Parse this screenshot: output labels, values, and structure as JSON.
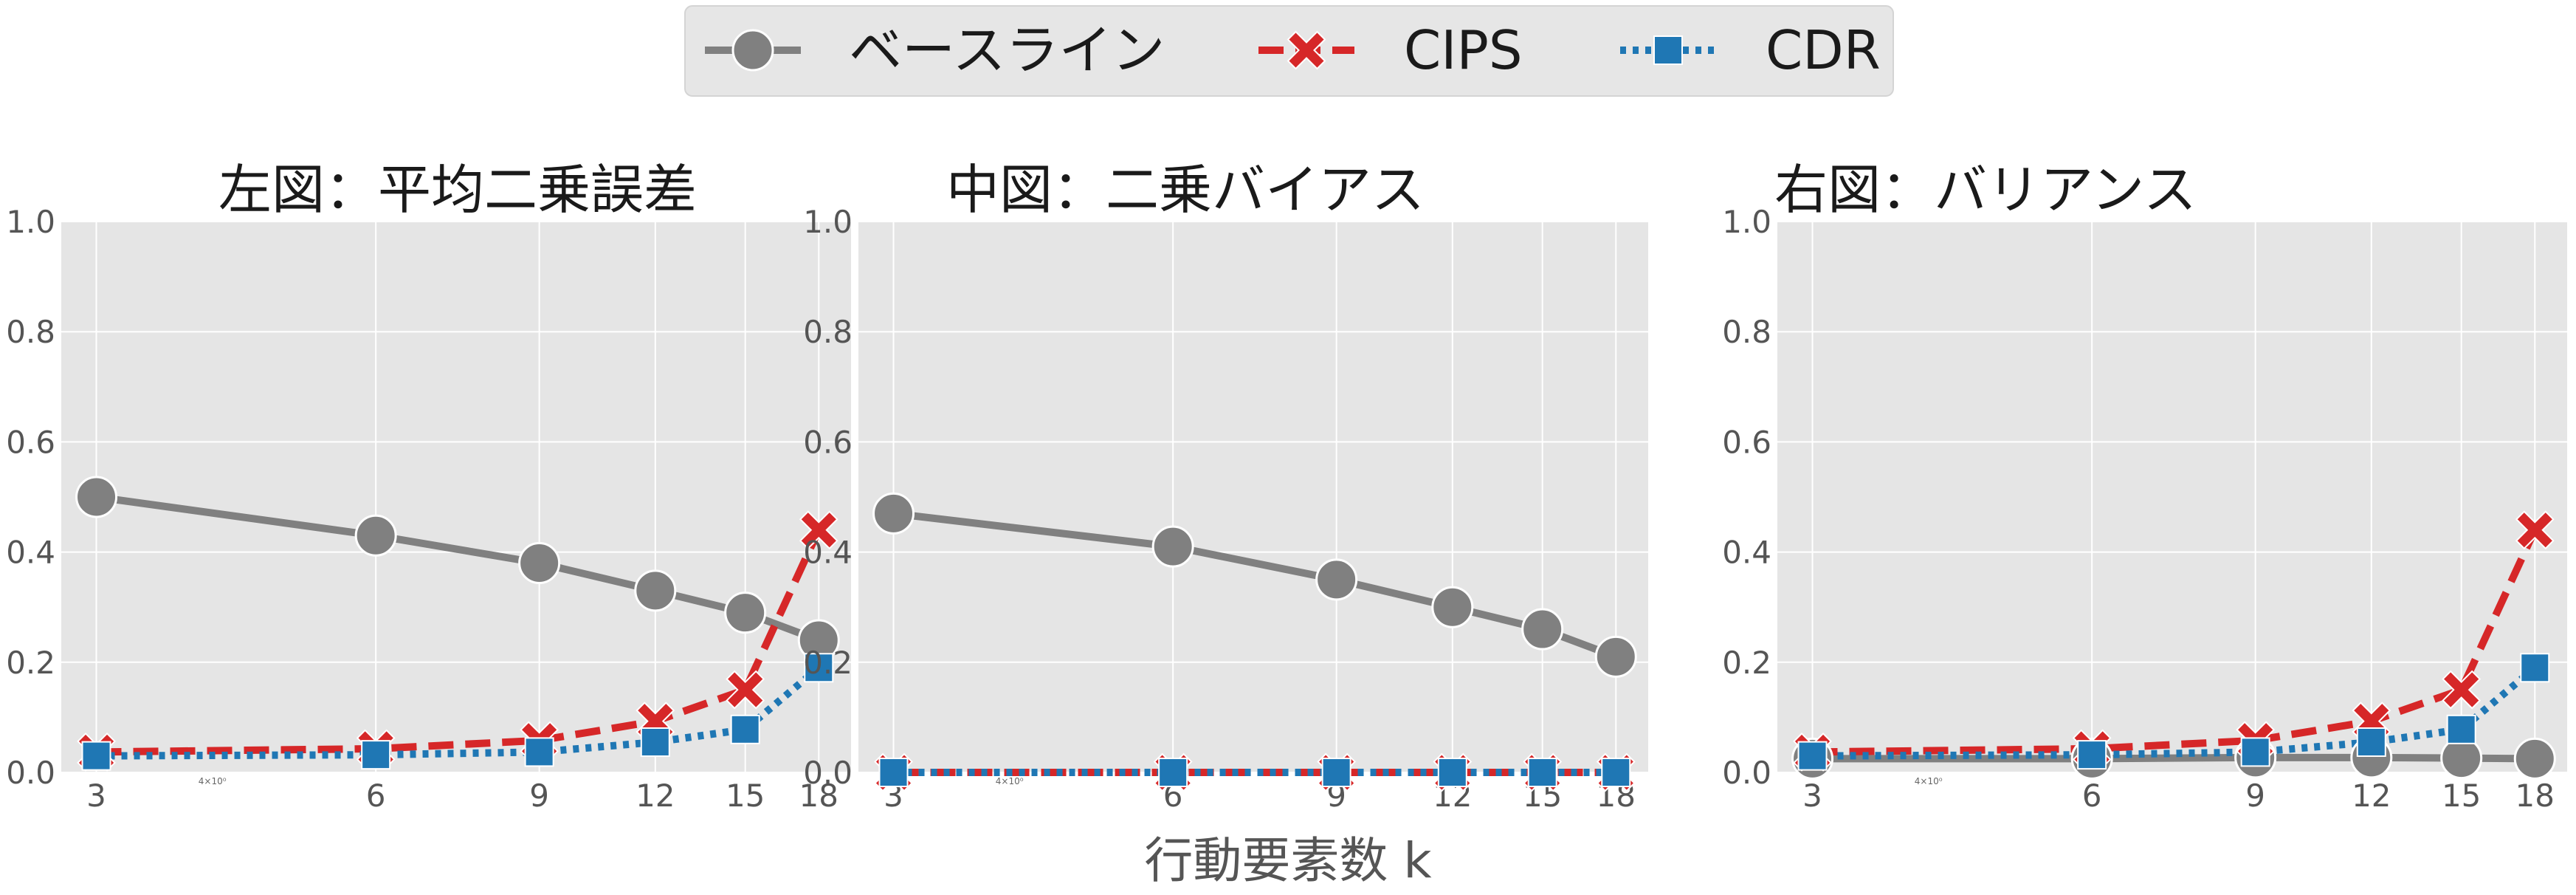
{
  "chart_data": {
    "type": "line",
    "x_scale": "log",
    "x": [
      3,
      6,
      9,
      12,
      15,
      18
    ],
    "xlim": [
      2.75,
      19.5
    ],
    "ylim": [
      0,
      1.0
    ],
    "yticks": [
      "0.0",
      "0.2",
      "0.4",
      "0.6",
      "0.8",
      "1.0"
    ],
    "xticks": [
      "3",
      "6",
      "9",
      "12",
      "15",
      "18"
    ],
    "minor_tick_label": "4×10⁰",
    "xlabel": "行動要素数 k",
    "grid": true,
    "legend": {
      "placement": "top-center",
      "entries": [
        {
          "name": "ベースライン",
          "color": "#808080",
          "marker": "circle",
          "linestyle": "solid"
        },
        {
          "name": "CIPS",
          "color": "#d62728",
          "marker": "x",
          "linestyle": "dashed"
        },
        {
          "name": "CDR",
          "color": "#1f77b4",
          "marker": "square",
          "linestyle": "dotted"
        }
      ]
    },
    "panels": [
      {
        "title": "左図：平均二乗誤差",
        "series": [
          {
            "name": "ベースライン",
            "values": [
              0.5,
              0.43,
              0.38,
              0.33,
              0.29,
              0.24
            ]
          },
          {
            "name": "CIPS",
            "values": [
              0.037,
              0.043,
              0.058,
              0.093,
              0.15,
              0.44
            ]
          },
          {
            "name": "CDR",
            "values": [
              0.03,
              0.032,
              0.037,
              0.055,
              0.078,
              0.19
            ]
          }
        ]
      },
      {
        "title": "中図：二乗バイアス",
        "series": [
          {
            "name": "ベースライン",
            "values": [
              0.47,
              0.41,
              0.35,
              0.3,
              0.26,
              0.21
            ]
          },
          {
            "name": "CIPS",
            "values": [
              0.0,
              0.0,
              0.0,
              0.0,
              0.0,
              0.0
            ]
          },
          {
            "name": "CDR",
            "values": [
              0.0,
              0.0,
              0.0,
              0.0,
              0.0,
              0.0
            ]
          }
        ]
      },
      {
        "title": "右図：バリアンス",
        "series": [
          {
            "name": "ベースライン",
            "values": [
              0.025,
              0.025,
              0.027,
              0.027,
              0.026,
              0.025
            ]
          },
          {
            "name": "CIPS",
            "values": [
              0.037,
              0.043,
              0.058,
              0.093,
              0.15,
              0.44
            ]
          },
          {
            "name": "CDR",
            "values": [
              0.03,
              0.032,
              0.037,
              0.055,
              0.078,
              0.19
            ]
          }
        ]
      }
    ]
  }
}
